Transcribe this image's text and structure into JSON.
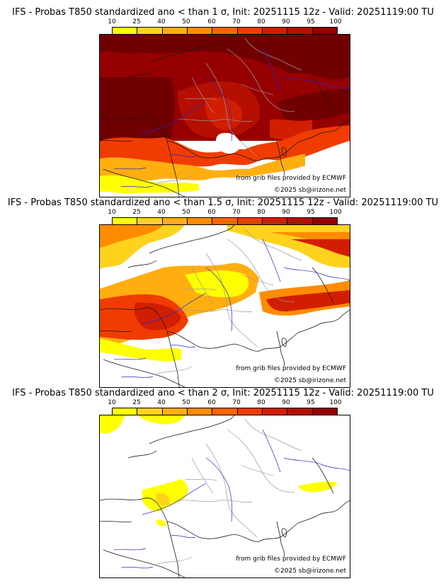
{
  "colors": {
    "scale": [
      "#ffff00",
      "#ffd21e",
      "#ffae10",
      "#ff8c00",
      "#ff6400",
      "#f03c00",
      "#d21e00",
      "#b40f00",
      "#960000",
      "#700000"
    ],
    "coast": "#1a1a1a",
    "borders": "#9a9a9a",
    "rivers": "#2828d0"
  },
  "colorbar": {
    "ticks": [
      "10",
      "25",
      "40",
      "50",
      "60",
      "70",
      "80",
      "90",
      "95",
      "100"
    ]
  },
  "credits": {
    "grib": "from grib files provided by ECMWF",
    "copyright": "©2025 sb@irizone.net"
  },
  "panels": [
    {
      "title": "IFS - Probas T850  standardized ano < than 1 σ, Init: 20251115 12z - Valid: 20251119:00 TU",
      "sigma": "1"
    },
    {
      "title": "IFS - Probas T850  standardized ano < than 1.5 σ, Init: 20251115 12z - Valid: 20251119:00 TU",
      "sigma": "1.5"
    },
    {
      "title": "IFS - Probas T850  standardized ano < than 2 σ, Init: 20251115 12z - Valid: 20251119:00 TU",
      "sigma": "2"
    }
  ]
}
